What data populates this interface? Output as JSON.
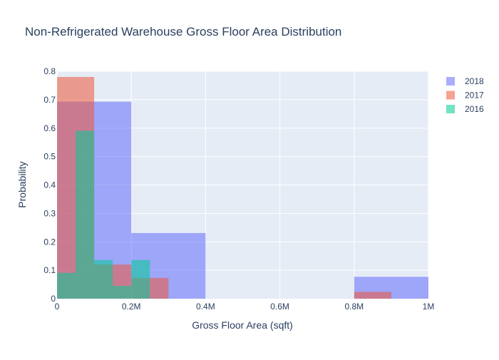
{
  "chart_data": {
    "type": "histogram",
    "title": "Non-Refrigerated Warehouse Gross Floor Area Distribution",
    "xlabel": "Gross Floor Area (sqft)",
    "ylabel": "Probability",
    "xlim": [
      0,
      1000000
    ],
    "ylim": [
      0,
      0.8
    ],
    "x_ticks": [
      0,
      200000,
      400000,
      600000,
      800000,
      1000000
    ],
    "x_tick_labels": [
      "0",
      "0.2M",
      "0.4M",
      "0.6M",
      "0.8M",
      "1M"
    ],
    "y_ticks": [
      0,
      0.1,
      0.2,
      0.3,
      0.4,
      0.5,
      0.6,
      0.7,
      0.8
    ],
    "y_tick_labels": [
      "0",
      "0.1",
      "0.2",
      "0.3",
      "0.4",
      "0.5",
      "0.6",
      "0.7",
      "0.8"
    ],
    "grid": true,
    "legend_position": "top-right",
    "series": [
      {
        "name": "2018",
        "color": "#636efa",
        "opacity": 0.55,
        "bins": [
          {
            "x0": 0,
            "x1": 200000,
            "y": 0.693
          },
          {
            "x0": 200000,
            "x1": 400000,
            "y": 0.231
          },
          {
            "x0": 400000,
            "x1": 600000,
            "y": 0
          },
          {
            "x0": 600000,
            "x1": 800000,
            "y": 0
          },
          {
            "x0": 800000,
            "x1": 1000000,
            "y": 0.077
          }
        ]
      },
      {
        "name": "2017",
        "color": "#EF553B",
        "opacity": 0.55,
        "bins": [
          {
            "x0": 0,
            "x1": 100000,
            "y": 0.78
          },
          {
            "x0": 100000,
            "x1": 200000,
            "y": 0.12
          },
          {
            "x0": 200000,
            "x1": 300000,
            "y": 0.073
          },
          {
            "x0": 300000,
            "x1": 800000,
            "y": 0
          },
          {
            "x0": 800000,
            "x1": 900000,
            "y": 0.024
          }
        ]
      },
      {
        "name": "2016",
        "color": "#00cc96",
        "opacity": 0.55,
        "bins": [
          {
            "x0": 0,
            "x1": 50000,
            "y": 0.091
          },
          {
            "x0": 50000,
            "x1": 100000,
            "y": 0.591
          },
          {
            "x0": 100000,
            "x1": 150000,
            "y": 0.136
          },
          {
            "x0": 150000,
            "x1": 200000,
            "y": 0.045
          },
          {
            "x0": 200000,
            "x1": 250000,
            "y": 0.136
          }
        ]
      }
    ]
  }
}
